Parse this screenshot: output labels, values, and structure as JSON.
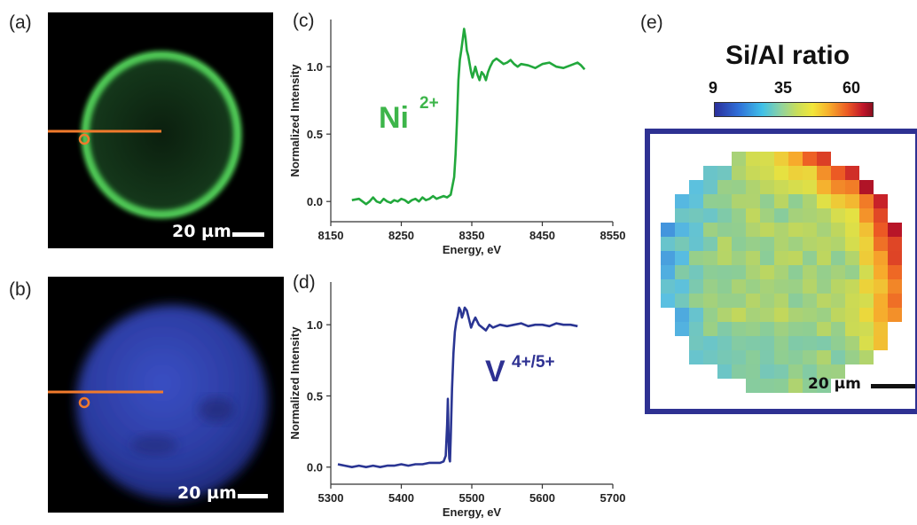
{
  "panel_labels": [
    "(a)",
    "(b)",
    "(c)",
    "(d)",
    "(e)"
  ],
  "micrographs": {
    "a": {
      "scale_label": "20 µm",
      "color": "#3fbf4a"
    },
    "b": {
      "scale_label": "20 µm",
      "color": "#3347b8"
    }
  },
  "chart_data": [
    {
      "type": "line",
      "panel": "(c)",
      "title": "",
      "xlabel": "Energy, eV",
      "ylabel": "Normalized Intensity",
      "xlim": [
        8150,
        8550
      ],
      "ylim": [
        -0.15,
        1.35
      ],
      "xticks": [
        8150,
        8250,
        8350,
        8450,
        8550
      ],
      "yticks": [
        0.0,
        0.5,
        1.0
      ],
      "annotation": {
        "text": "Ni",
        "sup": "2+"
      },
      "grid": false,
      "series": [
        {
          "color": "#22a83c",
          "x": [
            8180,
            8190,
            8195,
            8200,
            8205,
            8210,
            8215,
            8220,
            8225,
            8230,
            8235,
            8240,
            8245,
            8250,
            8255,
            8260,
            8265,
            8270,
            8275,
            8280,
            8285,
            8290,
            8295,
            8300,
            8305,
            8310,
            8315,
            8320,
            8322,
            8325,
            8327,
            8329,
            8331,
            8333,
            8335,
            8337,
            8339,
            8341,
            8343,
            8345,
            8347,
            8349,
            8351,
            8353,
            8355,
            8358,
            8361,
            8364,
            8367,
            8370,
            8373,
            8376,
            8380,
            8385,
            8390,
            8395,
            8400,
            8405,
            8410,
            8415,
            8420,
            8430,
            8440,
            8450,
            8460,
            8470,
            8480,
            8490,
            8500,
            8505,
            8510
          ],
          "y": [
            0.01,
            0.02,
            0.0,
            -0.02,
            0.0,
            0.03,
            0.0,
            -0.01,
            0.02,
            0.0,
            -0.01,
            0.01,
            0.0,
            0.02,
            0.01,
            -0.01,
            0.01,
            0.02,
            0.0,
            0.03,
            0.01,
            0.02,
            0.04,
            0.02,
            0.03,
            0.04,
            0.03,
            0.05,
            0.1,
            0.18,
            0.35,
            0.6,
            0.9,
            1.05,
            1.12,
            1.2,
            1.28,
            1.22,
            1.12,
            1.08,
            1.02,
            0.96,
            0.92,
            0.96,
            1.0,
            0.94,
            0.9,
            0.96,
            0.94,
            0.9,
            0.96,
            1.0,
            1.04,
            1.06,
            1.04,
            1.02,
            1.03,
            1.05,
            1.02,
            1.0,
            1.02,
            1.01,
            0.99,
            1.02,
            1.03,
            1.0,
            0.99,
            1.01,
            1.03,
            1.01,
            0.98
          ]
        }
      ]
    },
    {
      "type": "line",
      "panel": "(d)",
      "title": "",
      "xlabel": "Energy, eV",
      "ylabel": "Normalized Intensity",
      "xlim": [
        5300,
        5700
      ],
      "ylim": [
        -0.12,
        1.3
      ],
      "xticks": [
        5300,
        5400,
        5500,
        5600,
        5700
      ],
      "yticks": [
        0.0,
        0.5,
        1.0
      ],
      "annotation": {
        "text": "V",
        "sup": "4+/5+"
      },
      "grid": false,
      "series": [
        {
          "color": "#2a3593",
          "x": [
            5310,
            5320,
            5330,
            5340,
            5350,
            5360,
            5370,
            5380,
            5390,
            5400,
            5410,
            5420,
            5430,
            5440,
            5450,
            5455,
            5460,
            5463,
            5465,
            5466,
            5467,
            5468,
            5469,
            5470,
            5472,
            5474,
            5476,
            5478,
            5480,
            5482,
            5484,
            5486,
            5488,
            5490,
            5493,
            5496,
            5499,
            5502,
            5505,
            5510,
            5515,
            5520,
            5525,
            5530,
            5540,
            5550,
            5560,
            5570,
            5580,
            5590,
            5600,
            5610,
            5620,
            5630,
            5640,
            5650
          ],
          "y": [
            0.02,
            0.01,
            0.0,
            0.01,
            0.0,
            0.01,
            0.0,
            0.01,
            0.01,
            0.02,
            0.01,
            0.02,
            0.02,
            0.03,
            0.03,
            0.03,
            0.04,
            0.08,
            0.3,
            0.48,
            0.2,
            0.06,
            0.04,
            0.2,
            0.55,
            0.8,
            0.95,
            1.02,
            1.06,
            1.12,
            1.1,
            1.05,
            1.08,
            1.12,
            1.1,
            1.04,
            0.98,
            1.02,
            1.05,
            1.0,
            0.98,
            0.96,
            1.0,
            0.98,
            1.0,
            0.99,
            1.0,
            1.01,
            0.99,
            1.0,
            1.0,
            0.99,
            1.01,
            1.0,
            1.0,
            0.99
          ]
        }
      ]
    },
    {
      "type": "heatmap",
      "panel": "(e)",
      "title": "Si/Al ratio",
      "colorbar_ticks": [
        9,
        35,
        60
      ],
      "scale_label": "20 µm"
    }
  ]
}
